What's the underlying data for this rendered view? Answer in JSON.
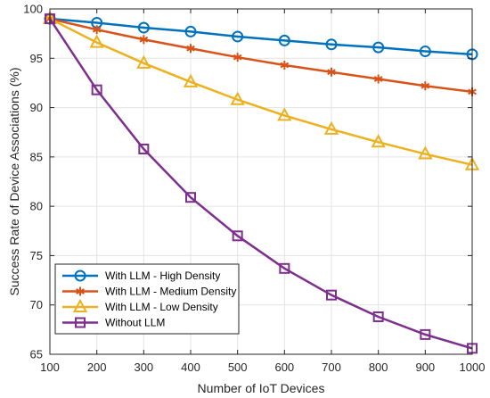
{
  "chart_data": {
    "type": "line",
    "title": "",
    "xlabel": "Number of IoT Devices",
    "ylabel": "Success Rate of Device Associations (%)",
    "x": [
      100,
      200,
      300,
      400,
      500,
      600,
      700,
      800,
      900,
      1000
    ],
    "xlim": [
      100,
      1000
    ],
    "ylim": [
      65,
      100
    ],
    "xticks": [
      100,
      200,
      300,
      400,
      500,
      600,
      700,
      800,
      900,
      1000
    ],
    "yticks": [
      65,
      70,
      75,
      80,
      85,
      90,
      95,
      100
    ],
    "grid": true,
    "legend_position": "bottom-left",
    "series": [
      {
        "name": "With LLM - High Density",
        "color": "#0072BD",
        "marker": "circle",
        "values": [
          99.0,
          98.6,
          98.1,
          97.7,
          97.2,
          96.8,
          96.4,
          96.1,
          95.7,
          95.4
        ]
      },
      {
        "name": "With LLM - Medium Density",
        "color": "#D95319",
        "marker": "asterisk",
        "values": [
          99.0,
          97.9,
          96.9,
          96.0,
          95.1,
          94.3,
          93.6,
          92.9,
          92.2,
          91.6
        ]
      },
      {
        "name": "With LLM - Low Density",
        "color": "#EDB120",
        "marker": "triangle",
        "values": [
          99.0,
          96.6,
          94.5,
          92.6,
          90.8,
          89.2,
          87.8,
          86.5,
          85.3,
          84.2
        ]
      },
      {
        "name": "Without LLM",
        "color": "#7E2F8E",
        "marker": "square",
        "values": [
          99.0,
          91.8,
          85.8,
          80.9,
          77.0,
          73.7,
          71.0,
          68.8,
          67.0,
          65.6
        ]
      }
    ]
  }
}
